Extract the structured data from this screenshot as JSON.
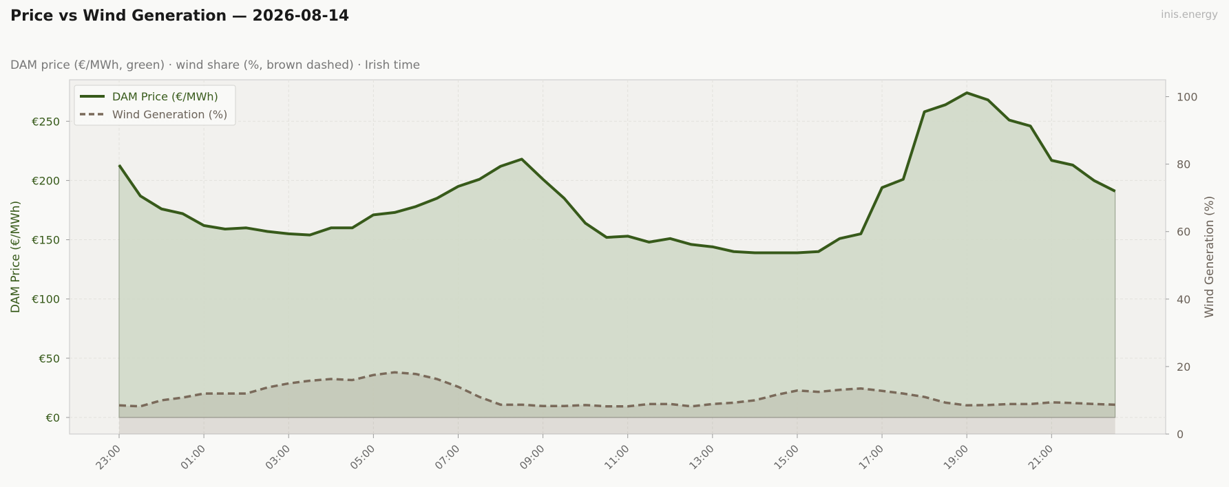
{
  "header": {
    "title": "Price vs Wind Generation — 2026-08-14",
    "subtitle": "DAM price (€/MWh, green)  ·  wind share (%, brown dashed)  ·  Irish time",
    "brand": "inis.energy"
  },
  "colors": {
    "price": "#375a1a",
    "wind": "#7a6a5a",
    "price_fill": "#cfd8c5",
    "plot_bg": "#f2f1ee"
  },
  "chart_data": {
    "type": "line",
    "title": "Price vs Wind Generation — 2026-08-14",
    "legend_placement": "top-left",
    "grid": true,
    "x": [
      "23:00",
      "23:30",
      "00:00",
      "00:30",
      "01:00",
      "01:30",
      "02:00",
      "02:30",
      "03:00",
      "03:30",
      "04:00",
      "04:30",
      "05:00",
      "05:30",
      "06:00",
      "06:30",
      "07:00",
      "07:30",
      "08:00",
      "08:30",
      "09:00",
      "09:30",
      "10:00",
      "10:30",
      "11:00",
      "11:30",
      "12:00",
      "12:30",
      "13:00",
      "13:30",
      "14:00",
      "14:30",
      "15:00",
      "15:30",
      "16:00",
      "16:30",
      "17:00",
      "17:30",
      "18:00",
      "18:30",
      "19:00",
      "19:30",
      "20:00",
      "20:30",
      "21:00",
      "21:30",
      "22:00",
      "22:30"
    ],
    "xticks": [
      "23:00",
      "01:00",
      "03:00",
      "05:00",
      "07:00",
      "09:00",
      "11:00",
      "13:00",
      "15:00",
      "17:00",
      "19:00",
      "21:00"
    ],
    "series": [
      {
        "name": "DAM Price (€/MWh)",
        "axis": "left",
        "values": [
          213,
          187,
          176,
          172,
          162,
          159,
          160,
          157,
          155,
          154,
          160,
          160,
          171,
          173,
          178,
          185,
          195,
          201,
          212,
          218,
          201,
          185,
          164,
          152,
          153,
          148,
          151,
          146,
          144,
          140,
          139,
          139,
          139,
          140,
          151,
          155,
          194,
          201,
          258,
          264,
          274,
          268,
          251,
          246,
          217,
          213,
          200,
          191
        ]
      },
      {
        "name": "Wind Generation (%)",
        "axis": "right",
        "values": [
          8.5,
          8.2,
          10,
          10.8,
          12,
          12,
          12,
          13.8,
          15,
          15.8,
          16.3,
          16,
          17.5,
          18.3,
          17.8,
          16.3,
          14,
          11,
          8.7,
          8.7,
          8.3,
          8.3,
          8.6,
          8.2,
          8.2,
          8.9,
          8.9,
          8.2,
          8.9,
          9.3,
          10,
          11.6,
          12.9,
          12.5,
          13.1,
          13.5,
          12.8,
          12,
          11,
          9.3,
          8.5,
          8.6,
          8.9,
          8.9,
          9.4,
          9.2,
          8.9,
          8.7
        ]
      }
    ],
    "ylabel_left": "DAM Price (€/MWh)",
    "ylabel_right": "Wind Generation (%)",
    "yticks_left": [
      "€0",
      "€50",
      "€100",
      "€150",
      "€200",
      "€250"
    ],
    "yticks_right": [
      "0",
      "20",
      "40",
      "60",
      "80",
      "100"
    ],
    "ylim_left": [
      -14,
      285
    ],
    "ylim_right": [
      0,
      105
    ]
  }
}
